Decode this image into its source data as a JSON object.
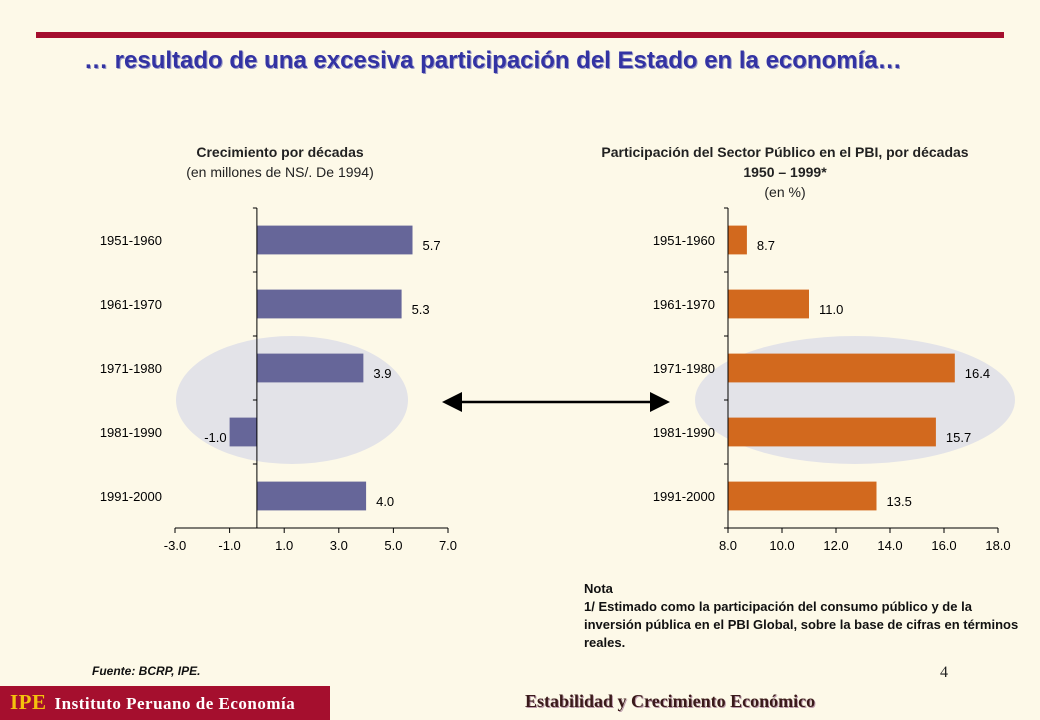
{
  "slide": {
    "title": "… resultado de una excesiva participación del Estado en la economía…",
    "page_number": "4",
    "source": "Fuente: BCRP, IPE.",
    "note_title": "Nota",
    "note_text": "1/ Estimado como la participación del consumo público y de la inversión pública en el PBI Global, sobre la base de cifras en términos reales."
  },
  "footer": {
    "logo": "IPE",
    "institute": "Instituto Peruano de Economía",
    "presentation": "Estabilidad y Crecimiento Económico"
  },
  "colors": {
    "left_bar": "#666699",
    "right_bar": "#d2691e",
    "highlight_ellipse": "#e3e3e8",
    "accent": "#a50f2e"
  },
  "chart_data": [
    {
      "type": "bar",
      "orientation": "horizontal",
      "title": "Crecimiento por décadas",
      "subtitle": "(en millones de NS/. De 1994)",
      "categories": [
        "1951-1960",
        "1961-1970",
        "1971-1980",
        "1981-1990",
        "1991-2000"
      ],
      "values": [
        5.7,
        5.3,
        3.9,
        -1.0,
        4.0
      ],
      "value_labels": [
        "5.7",
        "5.3",
        "3.9",
        "-1.0",
        "4.0"
      ],
      "xlim": [
        -3.0,
        7.0
      ],
      "xticks": [
        "-3.0",
        "-1.0",
        "1.0",
        "3.0",
        "5.0",
        "7.0"
      ],
      "highlight": [
        "1971-1980",
        "1981-1990"
      ]
    },
    {
      "type": "bar",
      "orientation": "horizontal",
      "title": "Participación del Sector Público en el PBI, por décadas 1950 – 1999*",
      "subtitle": "(en %)",
      "categories": [
        "1951-1960",
        "1961-1970",
        "1971-1980",
        "1981-1990",
        "1991-2000"
      ],
      "values": [
        8.7,
        11.0,
        16.4,
        15.7,
        13.5
      ],
      "value_labels": [
        "8.7",
        "11.0",
        "16.4",
        "15.7",
        "13.5"
      ],
      "xlim": [
        8.0,
        18.0
      ],
      "xticks": [
        "8.0",
        "10.0",
        "12.0",
        "14.0",
        "16.0",
        "18.0"
      ],
      "highlight": [
        "1971-1980",
        "1981-1990"
      ]
    }
  ]
}
